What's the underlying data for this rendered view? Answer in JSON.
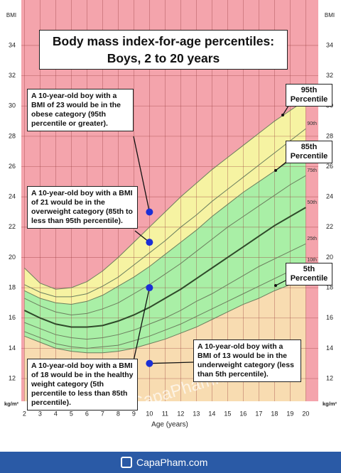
{
  "chart_data": {
    "type": "line",
    "title": "Body mass index-for-age percentiles:",
    "subtitle": "Boys, 2 to 20 years",
    "x_label": "Age (years)",
    "y_label": "BMI",
    "y_unit": "kg/m²",
    "x": [
      2,
      3,
      4,
      5,
      6,
      7,
      8,
      9,
      10,
      11,
      12,
      13,
      14,
      15,
      16,
      17,
      18,
      19,
      20
    ],
    "series": [
      {
        "name": "95th Percentile",
        "color": "#6b7f5e",
        "line_width": 1,
        "fill": "#f6f3a2",
        "values": [
          19.3,
          18.3,
          17.9,
          18.0,
          18.4,
          19.1,
          20.0,
          21.0,
          22.0,
          23.0,
          24.0,
          24.9,
          25.8,
          26.6,
          27.4,
          28.2,
          29.0,
          29.7,
          30.4
        ]
      },
      {
        "name": "90th",
        "color": "#6b7f5e",
        "line_width": 1,
        "values": [
          18.2,
          17.7,
          17.4,
          17.4,
          17.6,
          18.1,
          18.7,
          19.5,
          20.3,
          21.1,
          22.0,
          22.8,
          23.7,
          24.5,
          25.3,
          26.1,
          26.9,
          27.7,
          28.5
        ]
      },
      {
        "name": "85th Percentile",
        "color": "#6b7f5e",
        "line_width": 1,
        "fill": "#a9efa6",
        "values": [
          17.8,
          17.3,
          17.0,
          16.9,
          17.1,
          17.5,
          18.1,
          18.7,
          19.4,
          20.2,
          21.0,
          21.8,
          22.7,
          23.5,
          24.3,
          25.0,
          25.7,
          26.4,
          27.0
        ]
      },
      {
        "name": "75th",
        "color": "#6b7f5e",
        "line_width": 1,
        "values": [
          17.3,
          16.8,
          16.4,
          16.2,
          16.3,
          16.6,
          17.0,
          17.6,
          18.2,
          18.9,
          19.6,
          20.4,
          21.2,
          22.0,
          22.7,
          23.4,
          24.1,
          24.8,
          25.4
        ]
      },
      {
        "name": "50th",
        "color": "#2f4a2a",
        "line_width": 2,
        "values": [
          16.5,
          16.0,
          15.6,
          15.4,
          15.4,
          15.5,
          15.8,
          16.2,
          16.7,
          17.3,
          17.9,
          18.6,
          19.3,
          20.0,
          20.7,
          21.4,
          22.1,
          22.7,
          23.3
        ]
      },
      {
        "name": "25th",
        "color": "#6b7f5e",
        "line_width": 1,
        "values": [
          15.7,
          15.3,
          14.9,
          14.7,
          14.6,
          14.7,
          14.9,
          15.2,
          15.6,
          16.0,
          16.5,
          17.1,
          17.6,
          18.2,
          18.8,
          19.4,
          19.9,
          20.4,
          20.9
        ]
      },
      {
        "name": "10th",
        "color": "#6b7f5e",
        "line_width": 1,
        "values": [
          15.1,
          14.7,
          14.3,
          14.1,
          14.0,
          14.1,
          14.2,
          14.5,
          14.8,
          15.2,
          15.6,
          16.1,
          16.6,
          17.1,
          17.6,
          18.1,
          18.6,
          19.1,
          19.5
        ]
      },
      {
        "name": "5th Percentile",
        "color": "#6b7f5e",
        "line_width": 1,
        "fill": "#f8dcb1",
        "values": [
          14.8,
          14.4,
          14.0,
          13.8,
          13.7,
          13.7,
          13.8,
          14.0,
          14.3,
          14.6,
          15.0,
          15.4,
          15.9,
          16.4,
          16.9,
          17.3,
          17.8,
          18.2,
          18.6
        ]
      }
    ],
    "above_fill": "#f4a4ac",
    "xlim": [
      1.8,
      20.8
    ],
    "ylim": [
      10.5,
      37
    ],
    "xticks": [
      2,
      3,
      4,
      5,
      6,
      7,
      8,
      9,
      10,
      11,
      12,
      13,
      14,
      15,
      16,
      17,
      18,
      19,
      20
    ],
    "yticks": [
      12,
      14,
      16,
      18,
      20,
      22,
      24,
      26,
      28,
      30,
      32,
      34
    ],
    "grid": true,
    "annotations": [
      {
        "text": "A 10-year-old boy with a BMI of 23 would be in the obese category (95th percentile or greater).",
        "x": 10,
        "y": 23,
        "color": "#1b2fd6"
      },
      {
        "text": "A 10-year-old boy with a BMI of 21 would be in the overweight category (85th to less than 95th percentile).",
        "x": 10,
        "y": 21,
        "color": "#1b2fd6"
      },
      {
        "text": "A 10-year-old boy with a BMI of 18 would be in the healthy weight category (5th percentile to less than 85th percentile).",
        "x": 10,
        "y": 18,
        "color": "#1b2fd6"
      },
      {
        "text": "A 10-year-old boy with a BMI of 13 would be in the underweight category (less than 5th percentile).",
        "x": 10,
        "y": 13,
        "color": "#1b2fd6"
      }
    ]
  },
  "watermark": "©CapaPham.com",
  "footer": {
    "brand": "CapaPham.com"
  }
}
